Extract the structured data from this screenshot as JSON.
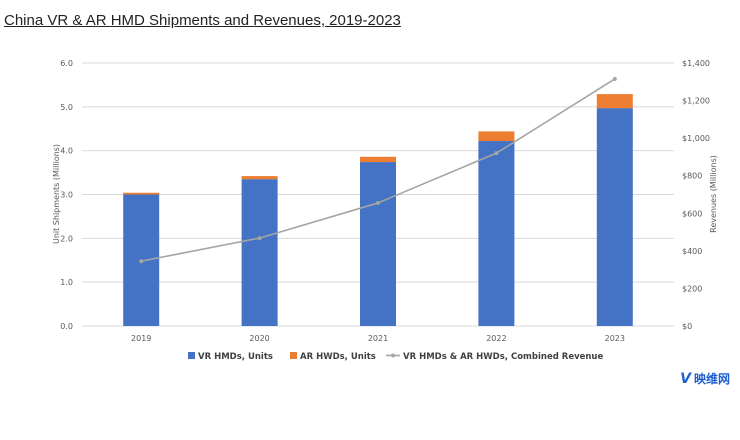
{
  "page": {
    "title": "China VR & AR HMD Shipments and Revenues, 2019-2023"
  },
  "brand": {
    "mark": "V",
    "name": "映维网"
  },
  "chart_data": {
    "type": "bar",
    "stacked": true,
    "title": "China VR & AR HMD Shipments and Revenues, 2019-2023",
    "categories": [
      "2019",
      "2020",
      "2021",
      "2022",
      "2023"
    ],
    "ylabel": "Unit Shipments (Millions)",
    "y2label": "Revenues (Millions)",
    "ylim": [
      0,
      6
    ],
    "y2lim": [
      0,
      1400
    ],
    "yticks": [
      "0.0",
      "1.0",
      "2.0",
      "3.0",
      "4.0",
      "5.0",
      "6.0"
    ],
    "y2ticks": [
      "$0",
      "$200",
      "$400",
      "$600",
      "$800",
      "$1,000",
      "$1,200",
      "$1,400"
    ],
    "series": [
      {
        "name": "VR HMDs, Units",
        "type": "bar",
        "axis": "left",
        "color": "#4472c4",
        "values": [
          3.0,
          3.35,
          3.74,
          4.22,
          4.97
        ]
      },
      {
        "name": "AR HWDs, Units",
        "type": "bar",
        "axis": "left",
        "color": "#ed7d31",
        "values": [
          0.04,
          0.07,
          0.12,
          0.22,
          0.32
        ]
      },
      {
        "name": "VR HMDs & AR HWDs, Combined Revenue",
        "type": "line",
        "axis": "right",
        "color": "#a5a5a5",
        "values": [
          345,
          468,
          655,
          920,
          1315
        ]
      }
    ],
    "grid": true,
    "legend": "bottom"
  }
}
